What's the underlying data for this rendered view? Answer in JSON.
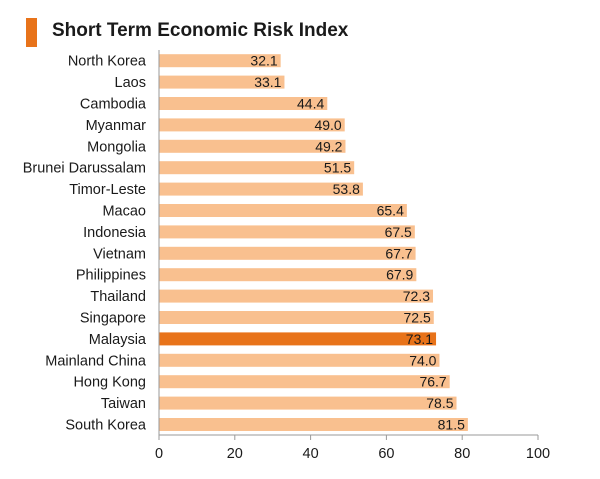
{
  "chart_data": {
    "type": "bar",
    "orientation": "horizontal",
    "title": "Short Term Economic Risk Index",
    "categories": [
      "North Korea",
      "Laos",
      "Cambodia",
      "Myanmar",
      "Mongolia",
      "Brunei Darussalam",
      "Timor-Leste",
      "Macao",
      "Indonesia",
      "Vietnam",
      "Philippines",
      "Thailand",
      "Singapore",
      "Malaysia",
      "Mainland China",
      "Hong Kong",
      "Taiwan",
      "South Korea"
    ],
    "values": [
      32.1,
      33.1,
      44.4,
      49.0,
      49.2,
      51.5,
      53.8,
      65.4,
      67.5,
      67.7,
      67.9,
      72.3,
      72.5,
      73.1,
      74.0,
      76.7,
      78.5,
      81.5
    ],
    "value_labels": [
      "32.1",
      "33.1",
      "44.4",
      "49.0",
      "49.2",
      "51.5",
      "53.8",
      "65.4",
      "67.5",
      "67.7",
      "67.9",
      "72.3",
      "72.5",
      "73.1",
      "74.0",
      "76.7",
      "78.5",
      "81.5"
    ],
    "highlight": "Malaysia",
    "xlim": [
      0,
      100
    ],
    "xticks": [
      "0",
      "20",
      "40",
      "60",
      "80",
      "100"
    ],
    "grid": false,
    "colors": {
      "bar": "#f9c08f",
      "highlight": "#e8731a",
      "marker": "#e8731a",
      "axis": "#999999",
      "text": "#1a1a1a"
    }
  }
}
